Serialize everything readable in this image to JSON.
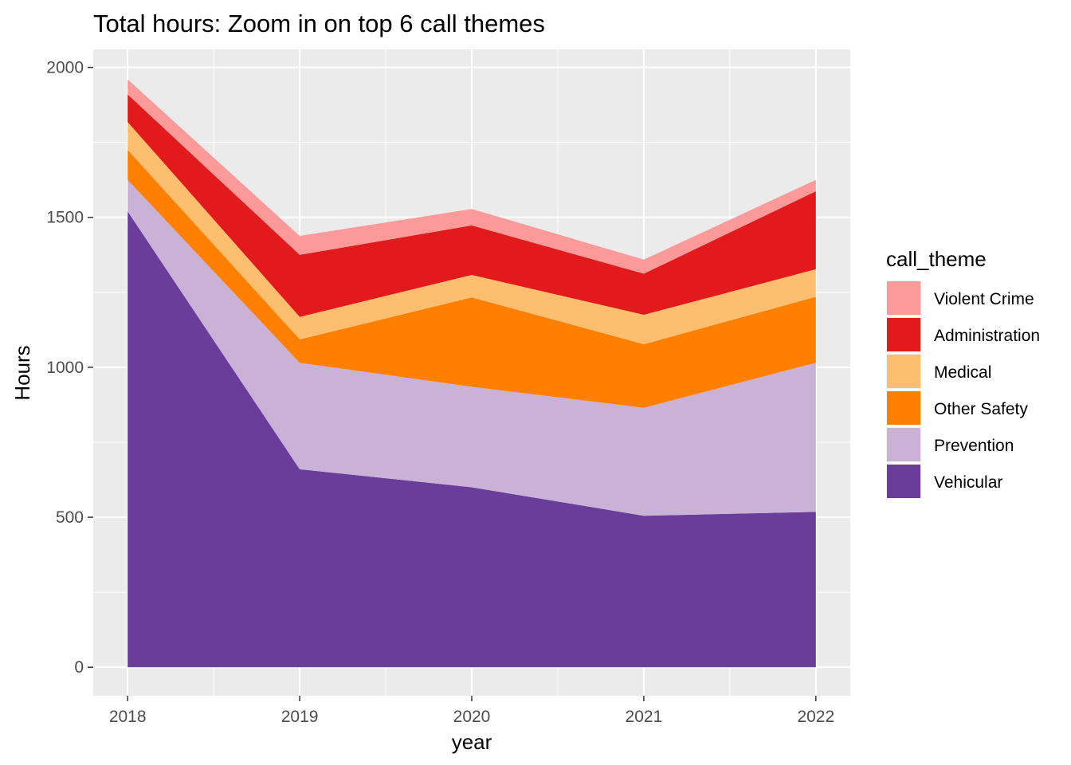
{
  "chart_data": {
    "type": "area",
    "stacked": true,
    "title": "Total hours: Zoom in on top 6 call themes",
    "xlabel": "year",
    "ylabel": "Hours",
    "x": [
      2018,
      2019,
      2020,
      2021,
      2022
    ],
    "x_ticks": [
      "2018",
      "2019",
      "2020",
      "2021",
      "2022"
    ],
    "xlim": [
      2017.8,
      2022.2
    ],
    "y_ticks": [
      "0",
      "500",
      "1000",
      "1500",
      "2000"
    ],
    "ylim": [
      -95,
      2060
    ],
    "grid": true,
    "legend": {
      "title": "call_theme",
      "position": "right",
      "order": [
        "Violent Crime",
        "Administration",
        "Medical",
        "Other Safety",
        "Prevention",
        "Vehicular"
      ]
    },
    "series": [
      {
        "name": "Vehicular",
        "color": "#6a3d9a",
        "values": [
          1520,
          660,
          600,
          505,
          518
        ]
      },
      {
        "name": "Prevention",
        "color": "#cab2d6",
        "values": [
          105,
          355,
          335,
          360,
          497
        ]
      },
      {
        "name": "Other Safety",
        "color": "#ff7f00",
        "values": [
          100,
          78,
          298,
          212,
          220
        ]
      },
      {
        "name": "Medical",
        "color": "#fdbf6f",
        "values": [
          93,
          75,
          75,
          98,
          92
        ]
      },
      {
        "name": "Administration",
        "color": "#e31a1c",
        "values": [
          92,
          207,
          165,
          137,
          260
        ]
      },
      {
        "name": "Violent Crime",
        "color": "#fb9a99",
        "values": [
          50,
          63,
          55,
          47,
          38
        ]
      }
    ]
  }
}
